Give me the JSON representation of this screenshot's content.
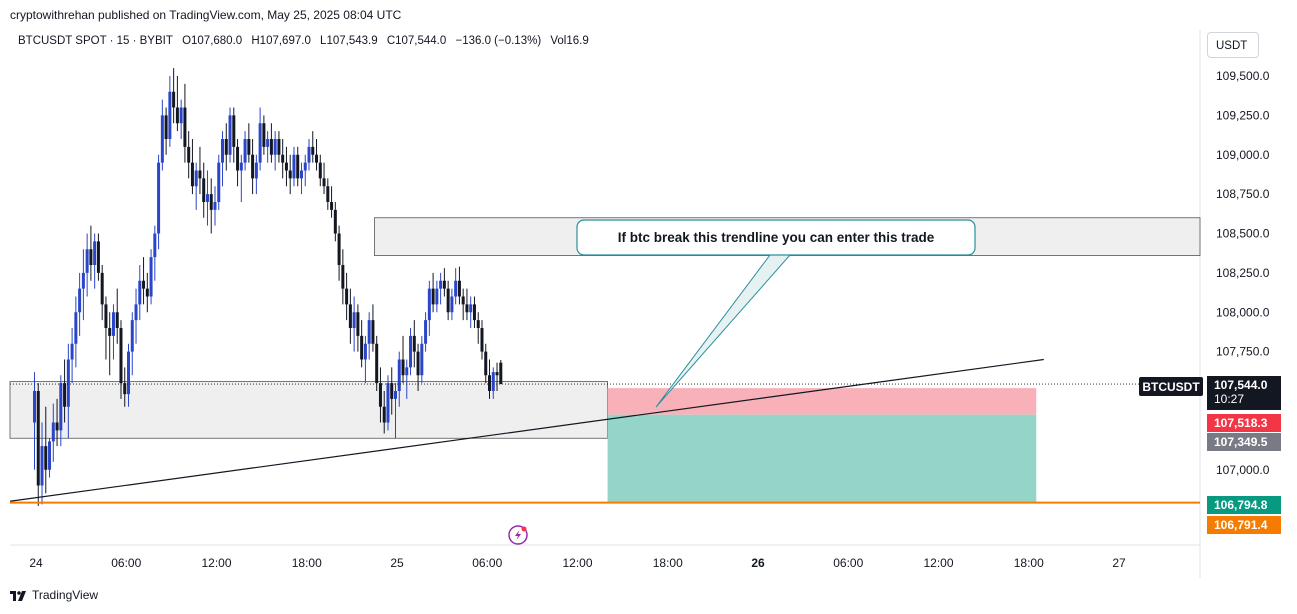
{
  "header": {
    "publisher": "cryptowithrehan published on TradingView.com, May 25, 2025 08:04 UTC"
  },
  "legend": {
    "symbol": "BTCUSDT SPOT · 15 · BYBIT",
    "open": "O107,680.0",
    "high": "H107,697.0",
    "low": "L107,543.9",
    "close": "C107,544.0",
    "change": "−136.0 (−0.13%)",
    "volume": "Vol16.9"
  },
  "price_axis": {
    "currency": "USDT",
    "ticks": [
      "109,500.0",
      "109,250.0",
      "109,000.0",
      "108,750.0",
      "108,500.0",
      "108,250.0",
      "108,000.0",
      "107,750.0",
      "107,000.0"
    ]
  },
  "badges": {
    "symbol_tag": "BTCUSDT",
    "last_price": "107,544.0",
    "countdown": "10:27",
    "stop_price": "107,518.3",
    "entry_price": "107,349.5",
    "target_price": "106,794.8",
    "hline_price": "106,791.4"
  },
  "annotation": {
    "text": "If btc break this trendline you can enter this trade"
  },
  "time_axis": {
    "labels": [
      "24",
      "06:00",
      "12:00",
      "18:00",
      "25",
      "06:00",
      "12:00",
      "18:00",
      "26",
      "06:00",
      "12:00",
      "18:00",
      "27"
    ]
  },
  "footer": {
    "brand": "TradingView"
  },
  "colors": {
    "up": "#2a45c9",
    "down": "#131722",
    "stop_zone": "#f7a9b0",
    "target_zone": "#8fd3c4",
    "hline": "#f57c00",
    "last_price_bg": "#131722",
    "stop_bg": "#f23645",
    "entry_bg": "#787b86",
    "target_bg": "#089981"
  },
  "chart_data": {
    "type": "candlestick",
    "title": "BTCUSDT SPOT · 15 · BYBIT",
    "ylabel": "USDT",
    "ylim": [
      106700,
      109750
    ],
    "x_range_hours": [
      -6,
      90
    ],
    "candles": [
      {
        "t": -0.1,
        "o": 107300,
        "h": 107620,
        "l": 107000,
        "c": 107500
      },
      {
        "t": 0.15,
        "o": 107500,
        "h": 107550,
        "l": 106770,
        "c": 106900
      },
      {
        "t": 0.4,
        "o": 106900,
        "h": 107300,
        "l": 106780,
        "c": 107150
      },
      {
        "t": 0.65,
        "o": 107150,
        "h": 107400,
        "l": 106850,
        "c": 107000
      },
      {
        "t": 0.9,
        "o": 107000,
        "h": 107200,
        "l": 106950,
        "c": 107180
      },
      {
        "t": 1.15,
        "o": 107180,
        "h": 107420,
        "l": 107050,
        "c": 107300
      },
      {
        "t": 1.4,
        "o": 107300,
        "h": 107450,
        "l": 107150,
        "c": 107250
      },
      {
        "t": 1.65,
        "o": 107250,
        "h": 107600,
        "l": 107150,
        "c": 107550
      },
      {
        "t": 1.9,
        "o": 107550,
        "h": 107700,
        "l": 107300,
        "c": 107400
      },
      {
        "t": 2.15,
        "o": 107400,
        "h": 107800,
        "l": 107200,
        "c": 107700
      },
      {
        "t": 2.4,
        "o": 107700,
        "h": 107900,
        "l": 107550,
        "c": 107800
      },
      {
        "t": 2.65,
        "o": 107800,
        "h": 108100,
        "l": 107650,
        "c": 108000
      },
      {
        "t": 2.9,
        "o": 108000,
        "h": 108250,
        "l": 107850,
        "c": 108150
      },
      {
        "t": 3.15,
        "o": 108150,
        "h": 108400,
        "l": 107950,
        "c": 108250
      },
      {
        "t": 3.4,
        "o": 108250,
        "h": 108500,
        "l": 108100,
        "c": 108400
      },
      {
        "t": 3.65,
        "o": 108400,
        "h": 108550,
        "l": 108200,
        "c": 108300
      },
      {
        "t": 3.9,
        "o": 108300,
        "h": 108500,
        "l": 108150,
        "c": 108450
      },
      {
        "t": 4.15,
        "o": 108450,
        "h": 108500,
        "l": 108200,
        "c": 108250
      },
      {
        "t": 4.4,
        "o": 108250,
        "h": 108300,
        "l": 107950,
        "c": 108050
      },
      {
        "t": 4.65,
        "o": 108050,
        "h": 108100,
        "l": 107700,
        "c": 107900
      },
      {
        "t": 4.9,
        "o": 107900,
        "h": 108000,
        "l": 107600,
        "c": 107850
      },
      {
        "t": 5.15,
        "o": 107850,
        "h": 108050,
        "l": 107700,
        "c": 108000
      },
      {
        "t": 5.4,
        "o": 108000,
        "h": 108150,
        "l": 107800,
        "c": 107900
      },
      {
        "t": 5.65,
        "o": 107900,
        "h": 107950,
        "l": 107450,
        "c": 107550
      },
      {
        "t": 5.9,
        "o": 107550,
        "h": 107650,
        "l": 107400,
        "c": 107480
      },
      {
        "t": 6.15,
        "o": 107480,
        "h": 107800,
        "l": 107400,
        "c": 107750
      },
      {
        "t": 6.4,
        "o": 107750,
        "h": 108000,
        "l": 107600,
        "c": 107950
      },
      {
        "t": 6.65,
        "o": 107950,
        "h": 108150,
        "l": 107800,
        "c": 108050
      },
      {
        "t": 6.9,
        "o": 108050,
        "h": 108300,
        "l": 107950,
        "c": 108200
      },
      {
        "t": 7.15,
        "o": 108200,
        "h": 108350,
        "l": 108050,
        "c": 108150
      },
      {
        "t": 7.4,
        "o": 108150,
        "h": 108250,
        "l": 108000,
        "c": 108100
      },
      {
        "t": 7.65,
        "o": 108100,
        "h": 108400,
        "l": 108050,
        "c": 108350
      },
      {
        "t": 7.9,
        "o": 108350,
        "h": 108550,
        "l": 108200,
        "c": 108500
      },
      {
        "t": 8.15,
        "o": 108500,
        "h": 109000,
        "l": 108400,
        "c": 108950
      },
      {
        "t": 8.4,
        "o": 108950,
        "h": 109350,
        "l": 108900,
        "c": 109250
      },
      {
        "t": 8.65,
        "o": 109250,
        "h": 109300,
        "l": 109000,
        "c": 109100
      },
      {
        "t": 8.9,
        "o": 109100,
        "h": 109500,
        "l": 109050,
        "c": 109400
      },
      {
        "t": 9.15,
        "o": 109400,
        "h": 109550,
        "l": 109200,
        "c": 109300
      },
      {
        "t": 9.4,
        "o": 109300,
        "h": 109500,
        "l": 109150,
        "c": 109200
      },
      {
        "t": 9.65,
        "o": 109200,
        "h": 109350,
        "l": 109100,
        "c": 109300
      },
      {
        "t": 9.9,
        "o": 109300,
        "h": 109450,
        "l": 108950,
        "c": 109050
      },
      {
        "t": 10.15,
        "o": 109050,
        "h": 109150,
        "l": 108850,
        "c": 108950
      },
      {
        "t": 10.4,
        "o": 108950,
        "h": 109100,
        "l": 108750,
        "c": 108800
      },
      {
        "t": 10.65,
        "o": 108800,
        "h": 108950,
        "l": 108650,
        "c": 108900
      },
      {
        "t": 10.9,
        "o": 108900,
        "h": 109050,
        "l": 108750,
        "c": 108850
      },
      {
        "t": 11.15,
        "o": 108850,
        "h": 108950,
        "l": 108600,
        "c": 108700
      },
      {
        "t": 11.4,
        "o": 108700,
        "h": 108900,
        "l": 108550,
        "c": 108750
      },
      {
        "t": 11.65,
        "o": 108750,
        "h": 108850,
        "l": 108500,
        "c": 108650
      },
      {
        "t": 11.9,
        "o": 108650,
        "h": 108800,
        "l": 108550,
        "c": 108700
      },
      {
        "t": 12.15,
        "o": 108700,
        "h": 109000,
        "l": 108650,
        "c": 108950
      },
      {
        "t": 12.4,
        "o": 108950,
        "h": 109150,
        "l": 108800,
        "c": 109100
      },
      {
        "t": 12.65,
        "o": 109100,
        "h": 109200,
        "l": 108900,
        "c": 109000
      },
      {
        "t": 12.9,
        "o": 109000,
        "h": 109300,
        "l": 108950,
        "c": 109250
      },
      {
        "t": 13.15,
        "o": 109250,
        "h": 109300,
        "l": 108950,
        "c": 109050
      },
      {
        "t": 13.4,
        "o": 109050,
        "h": 109100,
        "l": 108800,
        "c": 108900
      },
      {
        "t": 13.65,
        "o": 108900,
        "h": 109000,
        "l": 108700,
        "c": 108950
      },
      {
        "t": 13.9,
        "o": 108950,
        "h": 109150,
        "l": 108900,
        "c": 109100
      },
      {
        "t": 14.15,
        "o": 109100,
        "h": 109200,
        "l": 108950,
        "c": 109000
      },
      {
        "t": 14.4,
        "o": 109000,
        "h": 109100,
        "l": 108750,
        "c": 108850
      },
      {
        "t": 14.65,
        "o": 108850,
        "h": 109000,
        "l": 108750,
        "c": 108950
      },
      {
        "t": 14.9,
        "o": 108950,
        "h": 109300,
        "l": 108900,
        "c": 109200
      },
      {
        "t": 15.15,
        "o": 109200,
        "h": 109250,
        "l": 109000,
        "c": 109050
      },
      {
        "t": 15.4,
        "o": 109050,
        "h": 109150,
        "l": 108950,
        "c": 109100
      },
      {
        "t": 15.65,
        "o": 109100,
        "h": 109200,
        "l": 108950,
        "c": 109000
      },
      {
        "t": 15.9,
        "o": 109000,
        "h": 109150,
        "l": 108900,
        "c": 109100
      },
      {
        "t": 16.15,
        "o": 109100,
        "h": 109150,
        "l": 108950,
        "c": 109000
      },
      {
        "t": 16.4,
        "o": 109000,
        "h": 109100,
        "l": 108850,
        "c": 108950
      },
      {
        "t": 16.65,
        "o": 108950,
        "h": 109050,
        "l": 108800,
        "c": 108900
      },
      {
        "t": 16.9,
        "o": 108900,
        "h": 109000,
        "l": 108750,
        "c": 108850
      },
      {
        "t": 17.15,
        "o": 108850,
        "h": 109050,
        "l": 108800,
        "c": 109000
      },
      {
        "t": 17.4,
        "o": 109000,
        "h": 109050,
        "l": 108800,
        "c": 108850
      },
      {
        "t": 17.65,
        "o": 108850,
        "h": 108950,
        "l": 108750,
        "c": 108900
      },
      {
        "t": 17.9,
        "o": 108900,
        "h": 109000,
        "l": 108800,
        "c": 108950
      },
      {
        "t": 18.15,
        "o": 108950,
        "h": 109100,
        "l": 108900,
        "c": 109050
      },
      {
        "t": 18.4,
        "o": 109050,
        "h": 109150,
        "l": 108950,
        "c": 109000
      },
      {
        "t": 18.65,
        "o": 109000,
        "h": 109100,
        "l": 108900,
        "c": 108950
      },
      {
        "t": 18.9,
        "o": 108950,
        "h": 109000,
        "l": 108800,
        "c": 108850
      },
      {
        "t": 19.15,
        "o": 108850,
        "h": 108950,
        "l": 108750,
        "c": 108800
      },
      {
        "t": 19.4,
        "o": 108800,
        "h": 108850,
        "l": 108650,
        "c": 108700
      },
      {
        "t": 19.65,
        "o": 108700,
        "h": 108800,
        "l": 108600,
        "c": 108650
      },
      {
        "t": 19.9,
        "o": 108650,
        "h": 108700,
        "l": 108450,
        "c": 108500
      },
      {
        "t": 20.15,
        "o": 108500,
        "h": 108550,
        "l": 108200,
        "c": 108300
      },
      {
        "t": 20.4,
        "o": 108300,
        "h": 108400,
        "l": 108050,
        "c": 108150
      },
      {
        "t": 20.65,
        "o": 108150,
        "h": 108250,
        "l": 107950,
        "c": 108050
      },
      {
        "t": 20.9,
        "o": 108050,
        "h": 108150,
        "l": 107800,
        "c": 107900
      },
      {
        "t": 21.15,
        "o": 107900,
        "h": 108100,
        "l": 107750,
        "c": 108000
      },
      {
        "t": 21.4,
        "o": 108000,
        "h": 108050,
        "l": 107750,
        "c": 107850
      },
      {
        "t": 21.65,
        "o": 107850,
        "h": 107950,
        "l": 107650,
        "c": 107700
      },
      {
        "t": 21.9,
        "o": 107700,
        "h": 107850,
        "l": 107550,
        "c": 107800
      },
      {
        "t": 22.15,
        "o": 107800,
        "h": 108000,
        "l": 107700,
        "c": 107950
      },
      {
        "t": 22.4,
        "o": 107950,
        "h": 108050,
        "l": 107750,
        "c": 107800
      },
      {
        "t": 22.65,
        "o": 107800,
        "h": 107850,
        "l": 107500,
        "c": 107550
      },
      {
        "t": 22.9,
        "o": 107550,
        "h": 107650,
        "l": 107300,
        "c": 107400
      },
      {
        "t": 23.15,
        "o": 107400,
        "h": 107500,
        "l": 107230,
        "c": 107300
      },
      {
        "t": 23.4,
        "o": 107300,
        "h": 107600,
        "l": 107250,
        "c": 107550
      },
      {
        "t": 23.65,
        "o": 107550,
        "h": 107650,
        "l": 107350,
        "c": 107450
      },
      {
        "t": 23.9,
        "o": 107450,
        "h": 107550,
        "l": 107200,
        "c": 107500
      },
      {
        "t": 24.15,
        "o": 107500,
        "h": 107750,
        "l": 107400,
        "c": 107700
      },
      {
        "t": 24.4,
        "o": 107700,
        "h": 107850,
        "l": 107550,
        "c": 107600
      },
      {
        "t": 24.65,
        "o": 107600,
        "h": 107700,
        "l": 107450,
        "c": 107650
      },
      {
        "t": 24.9,
        "o": 107650,
        "h": 107900,
        "l": 107600,
        "c": 107850
      },
      {
        "t": 25.15,
        "o": 107850,
        "h": 107950,
        "l": 107650,
        "c": 107750
      },
      {
        "t": 25.4,
        "o": 107750,
        "h": 107800,
        "l": 107500,
        "c": 107600
      },
      {
        "t": 25.65,
        "o": 107600,
        "h": 107850,
        "l": 107550,
        "c": 107800
      },
      {
        "t": 25.9,
        "o": 107800,
        "h": 108000,
        "l": 107750,
        "c": 107950
      },
      {
        "t": 26.15,
        "o": 107950,
        "h": 108200,
        "l": 107850,
        "c": 108150
      },
      {
        "t": 26.4,
        "o": 108150,
        "h": 108250,
        "l": 108000,
        "c": 108050
      },
      {
        "t": 26.65,
        "o": 108050,
        "h": 108200,
        "l": 108000,
        "c": 108150
      },
      {
        "t": 26.9,
        "o": 108150,
        "h": 108250,
        "l": 108050,
        "c": 108200
      },
      {
        "t": 27.15,
        "o": 108200,
        "h": 108280,
        "l": 108100,
        "c": 108150
      },
      {
        "t": 27.4,
        "o": 108150,
        "h": 108200,
        "l": 107950,
        "c": 108000
      },
      {
        "t": 27.65,
        "o": 108000,
        "h": 108150,
        "l": 107950,
        "c": 108100
      },
      {
        "t": 27.9,
        "o": 108100,
        "h": 108280,
        "l": 108050,
        "c": 108200
      },
      {
        "t": 28.15,
        "o": 108200,
        "h": 108290,
        "l": 108050,
        "c": 108100
      },
      {
        "t": 28.4,
        "o": 108100,
        "h": 108150,
        "l": 107950,
        "c": 108050
      },
      {
        "t": 28.65,
        "o": 108050,
        "h": 108150,
        "l": 107950,
        "c": 108000
      },
      {
        "t": 28.9,
        "o": 108000,
        "h": 108100,
        "l": 107900,
        "c": 108050
      },
      {
        "t": 29.15,
        "o": 108050,
        "h": 108100,
        "l": 107900,
        "c": 107950
      },
      {
        "t": 29.4,
        "o": 107950,
        "h": 108000,
        "l": 107800,
        "c": 107900
      },
      {
        "t": 29.65,
        "o": 107900,
        "h": 107950,
        "l": 107700,
        "c": 107750
      },
      {
        "t": 29.9,
        "o": 107750,
        "h": 107800,
        "l": 107550,
        "c": 107600
      },
      {
        "t": 30.15,
        "o": 107600,
        "h": 107700,
        "l": 107450,
        "c": 107500
      },
      {
        "t": 30.4,
        "o": 107500,
        "h": 107650,
        "l": 107450,
        "c": 107620
      },
      {
        "t": 30.65,
        "o": 107620,
        "h": 107680,
        "l": 107500,
        "c": 107600
      },
      {
        "t": 30.9,
        "o": 107680,
        "h": 107697,
        "l": 107544,
        "c": 107544
      }
    ],
    "trendline": {
      "from": [
        -6,
        106800
      ],
      "to": [
        67,
        107700
      ]
    },
    "zones": [
      {
        "name": "resistance",
        "x0": 22.5,
        "x1": 96,
        "y0": 108360,
        "y1": 108600
      },
      {
        "name": "support",
        "x0": -6,
        "x1": 38,
        "y0": 107200,
        "y1": 107560
      }
    ],
    "position": {
      "x0": 38,
      "x1": 66.5,
      "stop_top": 107518.3,
      "entry": 107349.5,
      "target": 106794.8
    },
    "horizontal_line": 106791.4,
    "time_ticks": [
      {
        "label": "24",
        "h": 0
      },
      {
        "label": "06:00",
        "h": 6
      },
      {
        "label": "12:00",
        "h": 12
      },
      {
        "label": "18:00",
        "h": 18
      },
      {
        "label": "25",
        "h": 24
      },
      {
        "label": "06:00",
        "h": 30
      },
      {
        "label": "12:00",
        "h": 36
      },
      {
        "label": "18:00",
        "h": 42
      },
      {
        "label": "26",
        "h": 48
      },
      {
        "label": "06:00",
        "h": 54
      },
      {
        "label": "12:00",
        "h": 60
      },
      {
        "label": "18:00",
        "h": 66
      },
      {
        "label": "27",
        "h": 72
      }
    ],
    "price_ticks": [
      109500,
      109250,
      109000,
      108750,
      108500,
      108250,
      108000,
      107750,
      107000
    ]
  }
}
